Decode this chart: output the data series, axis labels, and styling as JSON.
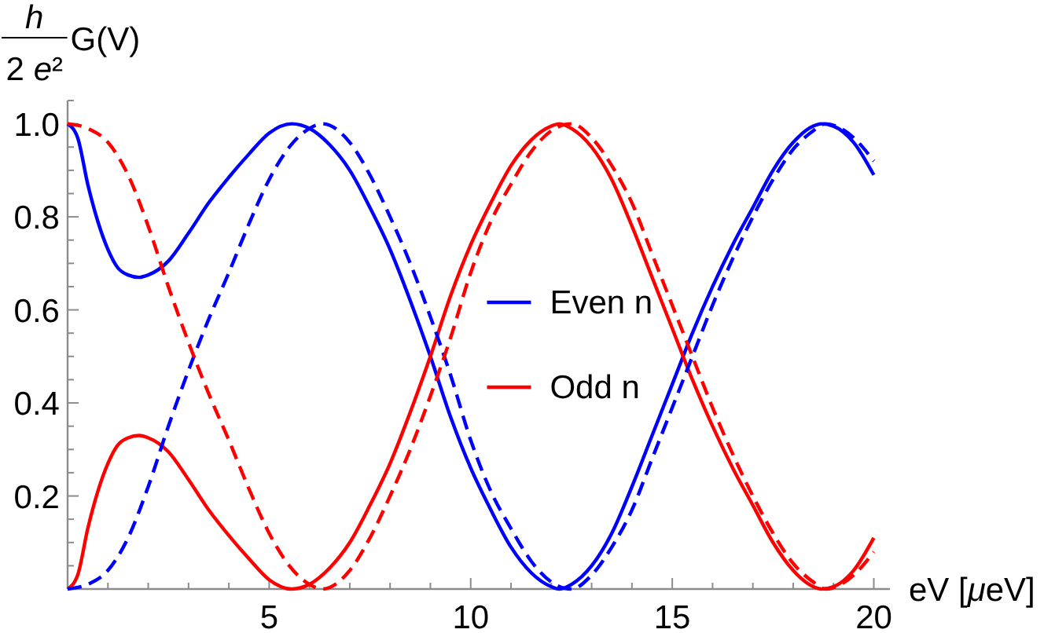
{
  "chart_data": {
    "type": "line",
    "xlabel": "eV [μeV]",
    "ylabel": "$^{h}$$_{2 e²}$G(V)",
    "xlim": [
      0,
      20.4
    ],
    "ylim": [
      0,
      1.05
    ],
    "xticks": [
      {
        "value": 1,
        "label": null
      },
      {
        "value": 2,
        "label": null
      },
      {
        "value": 3,
        "label": null
      },
      {
        "value": 4,
        "label": null
      },
      5,
      {
        "value": 6,
        "label": null
      },
      {
        "value": 7,
        "label": null
      },
      {
        "value": 8,
        "label": null
      },
      {
        "value": 9,
        "label": null
      },
      10,
      {
        "value": 11,
        "label": null
      },
      {
        "value": 12,
        "label": null
      },
      {
        "value": 13,
        "label": null
      },
      {
        "value": 14,
        "label": null
      },
      15,
      {
        "value": 16,
        "label": null
      },
      {
        "value": 17,
        "label": null
      },
      {
        "value": 18,
        "label": null
      },
      {
        "value": 19,
        "label": null
      },
      20
    ],
    "yticks": [
      {
        "value": 0.05,
        "label": null
      },
      {
        "value": 0.1,
        "label": null
      },
      {
        "value": 0.15,
        "label": null
      },
      0.2,
      {
        "value": 0.25,
        "label": null
      },
      {
        "value": 0.3,
        "label": null
      },
      {
        "value": 0.35,
        "label": null
      },
      0.4,
      {
        "value": 0.45,
        "label": null
      },
      {
        "value": 0.5,
        "label": null
      },
      {
        "value": 0.55,
        "label": null
      },
      0.6,
      {
        "value": 0.65,
        "label": null
      },
      {
        "value": 0.7,
        "label": null
      },
      {
        "value": 0.75,
        "label": null
      },
      0.8,
      {
        "value": 0.85,
        "label": null
      },
      {
        "value": 0.9,
        "label": null
      },
      {
        "value": 0.95,
        "label": null
      },
      {
        "value": 1,
        "label": "1.0"
      },
      {
        "value": 1.05,
        "label": null
      }
    ],
    "legend": "right",
    "series": [
      {
        "name": "Even n",
        "color": "#0000ff",
        "line_style": "solid",
        "x": [
          0,
          0.25,
          0.5,
          0.75,
          1,
          1.25,
          1.5,
          1.77,
          2,
          2.5,
          3,
          3.5,
          4,
          4.5,
          5,
          5.56,
          6,
          6.5,
          7,
          7.5,
          8,
          8.5,
          9,
          9.5,
          10,
          10.5,
          11,
          11.5,
          12,
          12.2,
          12.5,
          13,
          13.5,
          14,
          14.5,
          15,
          15.5,
          16,
          16.5,
          17,
          17.5,
          18,
          18.5,
          18.7,
          19,
          19.5,
          20
        ],
        "values": [
          1,
          0.97,
          0.87,
          0.79,
          0.73,
          0.69,
          0.675,
          0.67,
          0.675,
          0.705,
          0.765,
          0.83,
          0.885,
          0.935,
          0.98,
          1,
          0.99,
          0.955,
          0.9,
          0.82,
          0.73,
          0.62,
          0.5,
          0.37,
          0.26,
          0.17,
          0.09,
          0.035,
          0.005,
          0,
          0.01,
          0.05,
          0.12,
          0.22,
          0.33,
          0.44,
          0.55,
          0.65,
          0.74,
          0.82,
          0.9,
          0.96,
          0.995,
          1,
          0.995,
          0.96,
          0.89
        ]
      },
      {
        "name": "Odd n",
        "color": "#ff0000",
        "line_style": "solid",
        "x": [
          0,
          0.25,
          0.5,
          0.75,
          1,
          1.25,
          1.5,
          1.77,
          2,
          2.5,
          3,
          3.5,
          4,
          4.5,
          5,
          5.56,
          6,
          6.5,
          7,
          7.5,
          8,
          8.5,
          9,
          9.5,
          10,
          10.5,
          11,
          11.5,
          12,
          12.2,
          12.5,
          13,
          13.5,
          14,
          14.5,
          15,
          15.5,
          16,
          16.5,
          17,
          17.5,
          18,
          18.5,
          18.7,
          19,
          19.5,
          20
        ],
        "values": [
          0,
          0.03,
          0.13,
          0.21,
          0.27,
          0.31,
          0.325,
          0.33,
          0.325,
          0.295,
          0.235,
          0.17,
          0.115,
          0.065,
          0.02,
          0,
          0.01,
          0.045,
          0.1,
          0.18,
          0.27,
          0.38,
          0.5,
          0.63,
          0.74,
          0.83,
          0.91,
          0.965,
          0.995,
          1,
          0.99,
          0.95,
          0.88,
          0.78,
          0.67,
          0.56,
          0.45,
          0.35,
          0.26,
          0.18,
          0.1,
          0.04,
          0.005,
          0,
          0.005,
          0.04,
          0.11
        ]
      },
      {
        "color": "#0000ff",
        "line_style": "dashed",
        "x": [
          0,
          0.5,
          1,
          1.5,
          2,
          2.5,
          3,
          3.5,
          4,
          4.5,
          5,
          5.5,
          6,
          6.32,
          7,
          7.5,
          8,
          8.5,
          9,
          9.5,
          10,
          10.5,
          11,
          11.5,
          12,
          12.5,
          13,
          13.5,
          14,
          14.5,
          15,
          15.5,
          16,
          16.5,
          17,
          17.5,
          18,
          18.5,
          18.8,
          19.5,
          20
        ],
        "values": [
          0,
          0.01,
          0.04,
          0.11,
          0.22,
          0.35,
          0.47,
          0.58,
          0.68,
          0.785,
          0.88,
          0.95,
          0.99,
          1,
          0.96,
          0.89,
          0.8,
          0.7,
          0.585,
          0.46,
          0.32,
          0.21,
          0.13,
          0.06,
          0.015,
          0,
          0.03,
          0.09,
          0.17,
          0.28,
          0.39,
          0.5,
          0.61,
          0.71,
          0.8,
          0.88,
          0.945,
          0.985,
          1,
          0.97,
          0.92
        ]
      },
      {
        "color": "#ff0000",
        "line_style": "dashed",
        "x": [
          0,
          0.5,
          1,
          1.5,
          2,
          2.5,
          3,
          3.5,
          4,
          4.5,
          5,
          5.5,
          6,
          6.32,
          7,
          7.5,
          8,
          8.5,
          9,
          9.5,
          10,
          10.5,
          11,
          11.5,
          12,
          12.5,
          13,
          13.5,
          14,
          14.5,
          15,
          15.5,
          16,
          16.5,
          17,
          17.5,
          18,
          18.5,
          18.8,
          19.5,
          20
        ],
        "values": [
          1,
          0.99,
          0.96,
          0.89,
          0.78,
          0.65,
          0.53,
          0.42,
          0.32,
          0.215,
          0.12,
          0.05,
          0.01,
          0,
          0.04,
          0.11,
          0.2,
          0.3,
          0.415,
          0.54,
          0.68,
          0.79,
          0.87,
          0.94,
          0.985,
          1,
          0.97,
          0.91,
          0.83,
          0.72,
          0.61,
          0.5,
          0.39,
          0.29,
          0.2,
          0.12,
          0.055,
          0.015,
          0,
          0.03,
          0.08
        ]
      }
    ]
  }
}
